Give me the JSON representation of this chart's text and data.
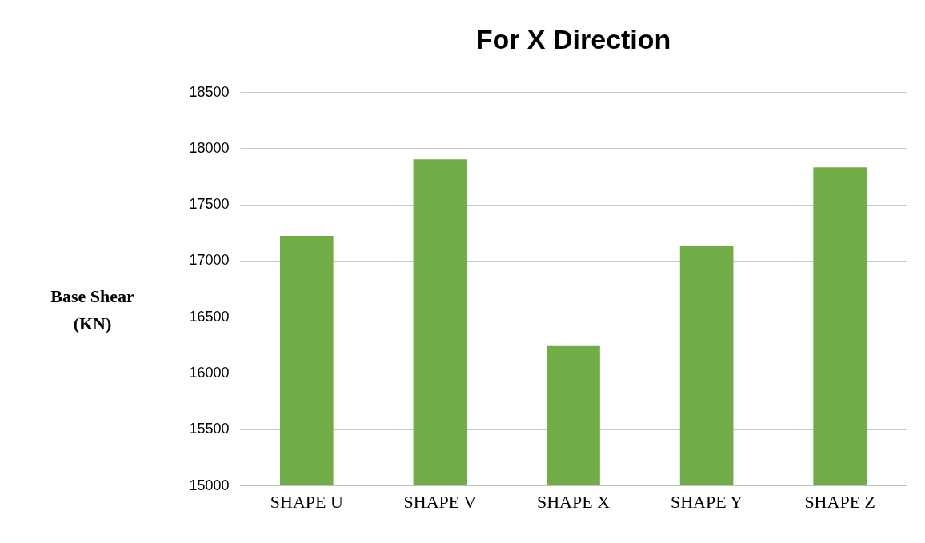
{
  "chart_data": {
    "type": "bar",
    "title": "For X Direction",
    "ylabel": "Base Shear (KN)",
    "categories": [
      "SHAPE U",
      "SHAPE V",
      "SHAPE X",
      "SHAPE Y",
      "SHAPE Z"
    ],
    "values": [
      17220,
      17900,
      16240,
      17130,
      17830
    ],
    "color": "#70ad47",
    "ylim": [
      15000,
      18500
    ],
    "yticks": [
      15000,
      15500,
      16000,
      16500,
      17000,
      17500,
      18000,
      18500
    ],
    "grid": "y"
  }
}
